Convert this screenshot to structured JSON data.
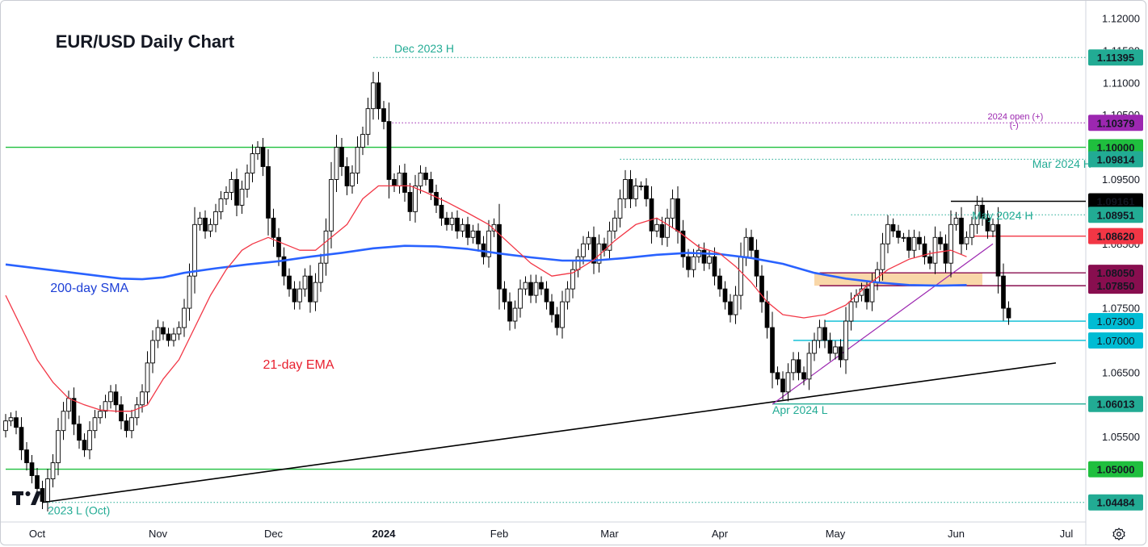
{
  "chart_data": {
    "type": "candlestick",
    "title": "EUR/USD Daily Chart",
    "colors": {
      "up": "#ffffff",
      "down": "#000000",
      "wick": "#000000",
      "sma": "#2962ff",
      "ema": "#f23645",
      "green": "#22ab94",
      "hline_green": "#1fbf3e",
      "purple": "#9c27b0",
      "cyan": "#00bcd4",
      "orange": "#f7c98b"
    },
    "y_axis": {
      "ylim": [
        1.0418,
        1.1225
      ],
      "ticks": [
        {
          "value": 1.12,
          "label": "1.12000"
        },
        {
          "value": 1.115,
          "label": "1.11500"
        },
        {
          "value": 1.11,
          "label": "1.11000"
        },
        {
          "value": 1.105,
          "label": "1.10500"
        },
        {
          "value": 1.095,
          "label": "1.09500"
        },
        {
          "value": 1.09,
          "label": "1.09000"
        },
        {
          "value": 1.085,
          "label": "1.08500"
        },
        {
          "value": 1.075,
          "label": "1.07500"
        },
        {
          "value": 1.065,
          "label": "1.06500"
        },
        {
          "value": 1.06,
          "label": "1.06000"
        },
        {
          "value": 1.055,
          "label": "1.05500"
        },
        {
          "value": 1.045,
          "label": "1.04500"
        }
      ]
    },
    "x_axis": {
      "labels": [
        {
          "label": "Oct",
          "index": 6,
          "bold": false
        },
        {
          "label": "Nov",
          "index": 29,
          "bold": false
        },
        {
          "label": "Dec",
          "index": 51,
          "bold": false
        },
        {
          "label": "2024",
          "index": 72,
          "bold": true
        },
        {
          "label": "Feb",
          "index": 94,
          "bold": false
        },
        {
          "label": "Mar",
          "index": 115,
          "bold": false
        },
        {
          "label": "Apr",
          "index": 136,
          "bold": false
        },
        {
          "label": "May",
          "index": 158,
          "bold": false
        },
        {
          "label": "Jun",
          "index": 181,
          "bold": false
        },
        {
          "label": "Jul",
          "index": 202,
          "bold": false
        }
      ]
    },
    "closes": [
      1.0575,
      1.058,
      1.0565,
      1.053,
      1.051,
      1.049,
      1.047,
      1.045,
      1.0485,
      1.051,
      1.056,
      1.059,
      1.061,
      1.057,
      1.0545,
      1.053,
      1.056,
      1.058,
      1.059,
      1.0605,
      1.062,
      1.06,
      1.0575,
      1.056,
      1.058,
      1.06,
      1.062,
      1.0665,
      1.07,
      1.072,
      1.071,
      1.07,
      1.071,
      1.072,
      1.075,
      1.08,
      1.088,
      1.089,
      1.087,
      1.088,
      1.09,
      1.092,
      1.093,
      1.095,
      1.091,
      1.0935,
      1.096,
      1.099,
      1.1,
      1.097,
      1.089,
      1.086,
      1.083,
      1.08,
      1.078,
      1.076,
      1.078,
      1.08,
      1.076,
      1.079,
      1.082,
      1.087,
      1.095,
      1.1,
      1.097,
      1.094,
      1.096,
      1.1,
      1.102,
      1.106,
      1.11,
      1.106,
      1.104,
      1.095,
      1.094,
      1.096,
      1.093,
      1.09,
      1.094,
      1.096,
      1.095,
      1.093,
      1.091,
      1.089,
      1.088,
      1.089,
      1.087,
      1.088,
      1.086,
      1.087,
      1.085,
      1.083,
      1.087,
      1.088,
      1.078,
      1.076,
      1.073,
      1.075,
      1.078,
      1.079,
      1.077,
      1.079,
      1.078,
      1.076,
      1.074,
      1.072,
      1.076,
      1.078,
      1.081,
      1.083,
      1.085,
      1.086,
      1.082,
      1.085,
      1.084,
      1.087,
      1.089,
      1.092,
      1.095,
      1.092,
      1.094,
      1.094,
      1.092,
      1.087,
      1.088,
      1.086,
      1.089,
      1.092,
      1.087,
      1.083,
      1.081,
      1.083,
      1.084,
      1.082,
      1.083,
      1.08,
      1.078,
      1.076,
      1.074,
      1.077,
      1.083,
      1.086,
      1.084,
      1.08,
      1.076,
      1.072,
      1.065,
      1.064,
      1.062,
      1.065,
      1.067,
      1.065,
      1.064,
      1.068,
      1.07,
      1.072,
      1.07,
      1.068,
      1.069,
      1.067,
      1.073,
      1.076,
      1.077,
      1.078,
      1.076,
      1.079,
      1.081,
      1.085,
      1.088,
      1.087,
      1.086,
      1.086,
      1.084,
      1.086,
      1.085,
      1.083,
      1.082,
      1.086,
      1.085,
      1.082,
      1.088,
      1.089,
      1.085,
      1.086,
      1.088,
      1.091,
      1.089,
      1.087,
      1.088,
      1.08,
      1.075,
      1.0735
    ],
    "sma_200": [
      [
        0,
        1.0818
      ],
      [
        8,
        1.081
      ],
      [
        16,
        1.0802
      ],
      [
        22,
        1.0796
      ],
      [
        26,
        1.0795
      ],
      [
        30,
        1.0798
      ],
      [
        34,
        1.0805
      ],
      [
        40,
        1.0812
      ],
      [
        46,
        1.0818
      ],
      [
        52,
        1.0823
      ],
      [
        58,
        1.083
      ],
      [
        64,
        1.0836
      ],
      [
        70,
        1.0843
      ],
      [
        76,
        1.0847
      ],
      [
        82,
        1.0846
      ],
      [
        88,
        1.0842
      ],
      [
        94,
        1.0835
      ],
      [
        100,
        1.0829
      ],
      [
        106,
        1.0824
      ],
      [
        112,
        1.0824
      ],
      [
        118,
        1.0828
      ],
      [
        124,
        1.0833
      ],
      [
        130,
        1.0836
      ],
      [
        136,
        1.0834
      ],
      [
        142,
        1.0828
      ],
      [
        148,
        1.0819
      ],
      [
        154,
        1.0805
      ],
      [
        160,
        1.0796
      ],
      [
        166,
        1.079
      ],
      [
        172,
        1.0786
      ],
      [
        178,
        1.0785
      ],
      [
        183,
        1.0786
      ]
    ],
    "ema_21": [
      [
        0,
        1.077
      ],
      [
        3,
        1.072
      ],
      [
        6,
        1.067
      ],
      [
        9,
        1.0635
      ],
      [
        12,
        1.061
      ],
      [
        15,
        1.06
      ],
      [
        18,
        1.0592
      ],
      [
        21,
        1.059
      ],
      [
        24,
        1.059
      ],
      [
        27,
        1.06
      ],
      [
        30,
        1.064
      ],
      [
        33,
        1.067
      ],
      [
        36,
        1.072
      ],
      [
        39,
        1.077
      ],
      [
        42,
        1.081
      ],
      [
        45,
        1.084
      ],
      [
        47,
        1.085
      ],
      [
        50,
        1.086
      ],
      [
        53,
        1.085
      ],
      [
        56,
        1.084
      ],
      [
        59,
        1.084
      ],
      [
        62,
        1.086
      ],
      [
        65,
        1.088
      ],
      [
        68,
        1.092
      ],
      [
        71,
        1.094
      ],
      [
        74,
        1.094
      ],
      [
        77,
        1.094
      ],
      [
        80,
        1.093
      ],
      [
        84,
        1.0915
      ],
      [
        88,
        1.0898
      ],
      [
        92,
        1.088
      ],
      [
        96,
        1.085
      ],
      [
        100,
        1.082
      ],
      [
        104,
        1.08
      ],
      [
        108,
        1.0805
      ],
      [
        112,
        1.0825
      ],
      [
        116,
        1.0855
      ],
      [
        120,
        1.088
      ],
      [
        124,
        1.089
      ],
      [
        128,
        1.087
      ],
      [
        132,
        1.0845
      ],
      [
        136,
        1.0835
      ],
      [
        139,
        1.0815
      ],
      [
        142,
        1.079
      ],
      [
        145,
        1.076
      ],
      [
        148,
        1.074
      ],
      [
        152,
        1.0735
      ],
      [
        156,
        1.074
      ],
      [
        160,
        1.0755
      ],
      [
        164,
        1.0785
      ],
      [
        168,
        1.081
      ],
      [
        172,
        1.0826
      ],
      [
        176,
        1.0835
      ],
      [
        180,
        1.084
      ],
      [
        183,
        1.083
      ]
    ],
    "horizontal_levels": [
      {
        "value": 1.11395,
        "label": "1.11395",
        "color": "#22ab94",
        "style": "dotted",
        "from": 70,
        "text_color": "#ffffff",
        "bold": true
      },
      {
        "value": 1.10379,
        "label": "1.10379",
        "color": "#9c27b0",
        "style": "dotted",
        "from": 73,
        "text_color": "#ffffff",
        "bold": true
      },
      {
        "value": 1.1,
        "label": "1.10000",
        "color": "#1fbf3e",
        "style": "solid",
        "from": 0,
        "text_color": "#ffffff",
        "bold": true
      },
      {
        "value": 1.09814,
        "label": "1.09814",
        "color": "#22ab94",
        "style": "dotted",
        "from": 117,
        "text_color": "#ffffff",
        "bold": true
      },
      {
        "value": 1.09161,
        "label": "1.09161",
        "color": "#000000",
        "style": "solid",
        "from": 180,
        "text_color": "#ffffff",
        "bold": true
      },
      {
        "value": 1.08951,
        "label": "1.08951",
        "color": "#22ab94",
        "style": "dotted",
        "from": 161,
        "text_color": "#ffffff",
        "bold": true
      },
      {
        "value": 1.0862,
        "label": "1.08620",
        "color": "#f23645",
        "style": "solid",
        "from": 184,
        "text_color": "#ffffff",
        "bold": true
      },
      {
        "value": 1.0805,
        "label": "1.08050",
        "color": "#880e4f",
        "style": "solid",
        "from": 155,
        "text_color": "#ffffff",
        "bold": true
      },
      {
        "value": 1.0785,
        "label": "1.07850",
        "color": "#880e4f",
        "style": "solid",
        "from": 155,
        "text_color": "#ffffff",
        "bold": true
      },
      {
        "value": 1.073,
        "label": "1.07300",
        "color": "#00bcd4",
        "style": "solid",
        "from": 156,
        "text_color": "#000000",
        "bold": false
      },
      {
        "value": 1.07,
        "label": "1.07000",
        "color": "#00bcd4",
        "style": "solid",
        "from": 150,
        "text_color": "#000000",
        "bold": false
      },
      {
        "value": 1.06013,
        "label": "1.06013",
        "color": "#22ab94",
        "style": "solid",
        "from": 146,
        "text_color": "#ffffff",
        "bold": true
      },
      {
        "value": 1.05,
        "label": "1.05000",
        "color": "#1fbf3e",
        "style": "solid",
        "from": 0,
        "text_color": "#ffffff",
        "bold": true
      },
      {
        "value": 1.04484,
        "label": "1.04484",
        "color": "#22ab94",
        "style": "dotted",
        "from": 7,
        "text_color": "#ffffff",
        "bold": true
      }
    ],
    "resistance_zone": {
      "from_index": 154,
      "to_index": 186,
      "top": 1.0805,
      "bottom": 1.0785
    },
    "trend_lines": [
      {
        "from": [
          7,
          1.04484
        ],
        "to": [
          200,
          1.0665
        ],
        "color": "#000000"
      },
      {
        "from": [
          146,
          1.0601
        ],
        "to": [
          188,
          1.085
        ],
        "color": "#9c27b0"
      }
    ],
    "annotations": [
      {
        "text": "EUR/USD Daily Chart",
        "index": 9.5,
        "value": 1.1155,
        "color": "#131722",
        "size": 22,
        "bold": true,
        "anchor": "start"
      },
      {
        "text": "Dec 2023 H",
        "index": 74,
        "value": 1.1147,
        "color": "#22ab94",
        "size": 14,
        "bold": false,
        "anchor": "start"
      },
      {
        "text": "200-day SMA",
        "index": 8.5,
        "value": 1.0775,
        "color": "#1d3fd6",
        "size": 16,
        "bold": false,
        "anchor": "start"
      },
      {
        "text": "21-day EMA",
        "index": 49,
        "value": 1.0656,
        "color": "#e8202f",
        "size": 16,
        "bold": false,
        "anchor": "start"
      },
      {
        "text": "2024 open (+)",
        "index": 187,
        "value": 1.1043,
        "color": "#9c27b0",
        "size": 11,
        "bold": false,
        "anchor": "start"
      },
      {
        "text": "(-)",
        "index": 191.2,
        "value": 1.103,
        "color": "#9c27b0",
        "size": 11,
        "bold": false,
        "anchor": "start"
      },
      {
        "text": "Mar 2024 H",
        "index": 195.5,
        "value": 1.0968,
        "color": "#22ab94",
        "size": 14,
        "bold": false,
        "anchor": "start"
      },
      {
        "text": "May 2024 H",
        "index": 184,
        "value": 1.0888,
        "color": "#22ab94",
        "size": 14,
        "bold": false,
        "anchor": "start"
      },
      {
        "text": "Apr 2024 L",
        "index": 146,
        "value": 1.0586,
        "color": "#22ab94",
        "size": 14,
        "bold": false,
        "anchor": "start"
      },
      {
        "text": "2023 L (Oct)",
        "index": 8,
        "value": 1.043,
        "color": "#22ab94",
        "size": 14,
        "bold": false,
        "anchor": "start"
      }
    ]
  },
  "toolbar": {
    "settings_icon": "gear-icon",
    "logo": "tradingview-logo"
  }
}
